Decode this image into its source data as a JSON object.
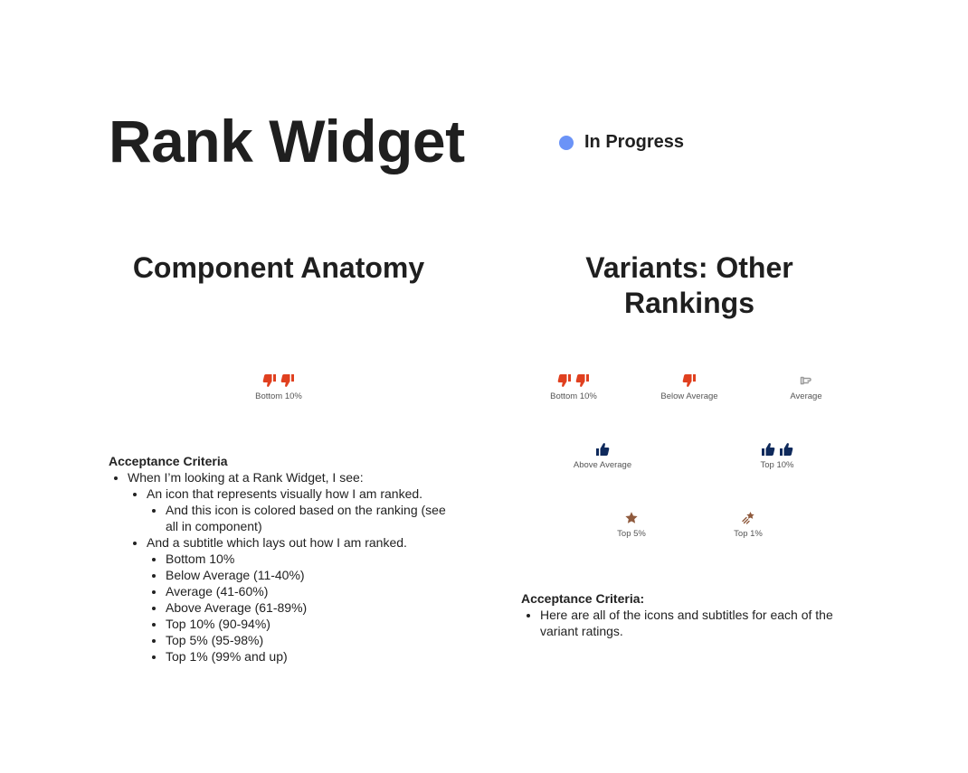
{
  "header": {
    "title": "Rank Widget",
    "status": {
      "label": "In Progress",
      "color": "#6b93f7"
    }
  },
  "anatomy": {
    "title": "Component Anatomy",
    "widget": {
      "label": "Bottom 10%",
      "icon": "thumbs-down-icon",
      "icon_count": 2,
      "color": "#e0401f"
    },
    "criteria": {
      "title": "Acceptance Criteria",
      "items": [
        {
          "text": "When I’m looking at a Rank Widget, I see:",
          "children": [
            {
              "text": "An icon that represents visually how I am ranked.",
              "children": [
                "And this icon is colored based on the ranking (see all in component)"
              ]
            },
            {
              "text": "And a subtitle which lays out how I am ranked.",
              "children": [
                "Bottom 10%",
                "Below Average (11-40%)",
                "Average (41-60%)",
                "Above Average (61-89%)",
                "Top 10% (90-94%)",
                "Top 5% (95-98%)",
                "Top 1% (99% and up)"
              ]
            }
          ]
        }
      ]
    }
  },
  "variants": {
    "title": "Variants: Other Rankings",
    "items": [
      {
        "label": "Bottom 10%",
        "icon": "thumbs-down-icon",
        "icon_count": 2,
        "color": "#e0401f"
      },
      {
        "label": "Below Average",
        "icon": "thumbs-down-icon",
        "icon_count": 1,
        "color": "#e0401f"
      },
      {
        "label": "Average",
        "icon": "sideways-thumb-icon",
        "icon_count": 1,
        "color": "#9a9a9a"
      },
      {
        "label": "Above Average",
        "icon": "thumbs-up-icon",
        "icon_count": 1,
        "color": "#0f2a5c"
      },
      {
        "label": "Top 10%",
        "icon": "thumbs-up-icon",
        "icon_count": 2,
        "color": "#0f2a5c"
      },
      {
        "label": "Top 5%",
        "icon": "star-icon",
        "icon_count": 1,
        "color": "#8f5a3d"
      },
      {
        "label": "Top 1%",
        "icon": "shooting-star-icon",
        "icon_count": 1,
        "color": "#8f5a3d"
      }
    ],
    "criteria": {
      "title": "Acceptance Criteria:",
      "items": [
        {
          "text": "Here are all of the icons and subtitles for each of the variant ratings."
        }
      ]
    }
  }
}
